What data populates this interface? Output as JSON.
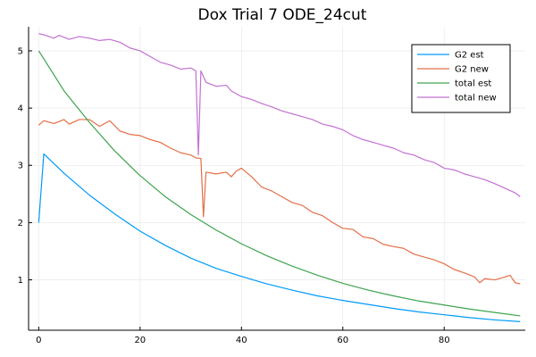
{
  "chart_data": {
    "type": "line",
    "title": "Dox Trial 7 ODE_24cut",
    "xlabel": "",
    "ylabel": "",
    "xlim": [
      -2,
      96
    ],
    "ylim": [
      0.12,
      5.42
    ],
    "x_ticks": [
      0,
      20,
      40,
      60,
      80
    ],
    "y_ticks": [
      1,
      2,
      3,
      4,
      5
    ],
    "grid": true,
    "legend_position": "top-right",
    "series": [
      {
        "name": "G2 est",
        "color": "#009AFA",
        "x": [
          0,
          1,
          5,
          10,
          15,
          20,
          25,
          30,
          35,
          40,
          45,
          50,
          55,
          60,
          65,
          70,
          75,
          80,
          85,
          90,
          95
        ],
        "y": [
          2.0,
          3.2,
          2.86,
          2.48,
          2.15,
          1.85,
          1.6,
          1.38,
          1.2,
          1.06,
          0.93,
          0.82,
          0.72,
          0.64,
          0.57,
          0.5,
          0.44,
          0.39,
          0.34,
          0.3,
          0.27
        ]
      },
      {
        "name": "G2 new",
        "color": "#E36F47",
        "x": [
          0,
          1,
          3,
          5,
          6,
          8,
          10,
          12,
          14,
          16,
          18,
          20,
          22,
          24,
          26,
          28,
          30,
          31,
          32,
          32.5,
          33,
          35,
          37,
          38,
          39,
          40,
          42,
          44,
          46,
          48,
          50,
          52,
          54,
          56,
          58,
          60,
          62,
          64,
          66,
          68,
          70,
          72,
          74,
          76,
          78,
          80,
          82,
          84,
          86,
          87,
          88,
          90,
          92,
          93,
          94,
          95
        ],
        "y": [
          3.7,
          3.78,
          3.73,
          3.8,
          3.72,
          3.8,
          3.8,
          3.68,
          3.78,
          3.6,
          3.54,
          3.52,
          3.45,
          3.4,
          3.3,
          3.22,
          3.18,
          3.13,
          3.12,
          2.1,
          2.88,
          2.85,
          2.88,
          2.8,
          2.9,
          2.95,
          2.8,
          2.62,
          2.55,
          2.45,
          2.35,
          2.3,
          2.18,
          2.12,
          2.0,
          1.9,
          1.88,
          1.75,
          1.72,
          1.62,
          1.58,
          1.55,
          1.45,
          1.4,
          1.35,
          1.28,
          1.18,
          1.12,
          1.05,
          0.95,
          1.02,
          1.0,
          1.05,
          1.08,
          0.95,
          0.93
        ]
      },
      {
        "name": "total est",
        "color": "#3DA44E",
        "x": [
          0,
          5,
          10,
          15,
          20,
          25,
          30,
          35,
          40,
          45,
          50,
          55,
          60,
          65,
          70,
          75,
          80,
          85,
          90,
          95
        ],
        "y": [
          5.0,
          4.3,
          3.75,
          3.25,
          2.82,
          2.45,
          2.14,
          1.87,
          1.63,
          1.42,
          1.24,
          1.08,
          0.94,
          0.82,
          0.72,
          0.63,
          0.56,
          0.49,
          0.43,
          0.37
        ]
      },
      {
        "name": "total new",
        "color": "#C271D2",
        "x": [
          0,
          1,
          3,
          4,
          6,
          8,
          10,
          12,
          14,
          16,
          18,
          20,
          22,
          24,
          26,
          28,
          30,
          31,
          31.5,
          32,
          33,
          35,
          37,
          38,
          40,
          42,
          44,
          46,
          48,
          50,
          52,
          54,
          56,
          58,
          60,
          62,
          64,
          66,
          68,
          70,
          72,
          74,
          76,
          78,
          80,
          82,
          84,
          86,
          88,
          90,
          92,
          94,
          95
        ],
        "y": [
          5.3,
          5.28,
          5.22,
          5.27,
          5.2,
          5.25,
          5.22,
          5.18,
          5.2,
          5.15,
          5.05,
          5.0,
          4.9,
          4.8,
          4.75,
          4.68,
          4.7,
          4.65,
          3.18,
          4.65,
          4.45,
          4.38,
          4.4,
          4.3,
          4.2,
          4.15,
          4.08,
          4.02,
          3.95,
          3.9,
          3.85,
          3.8,
          3.72,
          3.68,
          3.62,
          3.52,
          3.45,
          3.4,
          3.35,
          3.3,
          3.22,
          3.18,
          3.1,
          3.05,
          2.95,
          2.92,
          2.85,
          2.8,
          2.75,
          2.68,
          2.6,
          2.52,
          2.45
        ]
      }
    ]
  }
}
